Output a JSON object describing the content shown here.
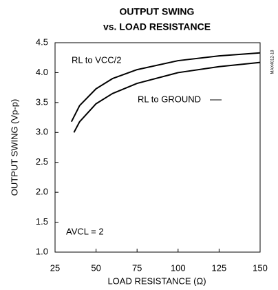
{
  "chart_data": {
    "type": "line",
    "title": [
      "OUTPUT SWING",
      "vs. LOAD RESISTANCE"
    ],
    "xlabel": "LOAD RESISTANCE (Ω)",
    "ylabel": "OUTPUT SWING (Vp-p)",
    "xlim": [
      25,
      150
    ],
    "xticks": [
      25,
      50,
      75,
      100,
      125,
      150
    ],
    "ylim": [
      1.0,
      4.5
    ],
    "yticks": [
      {
        "value": 1.0,
        "label": "1.0"
      },
      {
        "value": 1.5,
        "label": "1.5"
      },
      {
        "value": 2.0,
        "label": "2.0"
      },
      {
        "value": 2.5,
        "label": "2.5"
      },
      {
        "value": 3.0,
        "label": "3.0"
      },
      {
        "value": 3.5,
        "label": "3.5"
      },
      {
        "value": 4.0,
        "label": "4.0"
      },
      {
        "value": 4.5,
        "label": "4.5"
      }
    ],
    "grid": false,
    "series": [
      {
        "name": "RL to VCC/2",
        "color": "#000000",
        "x": [
          35,
          40,
          50,
          60,
          75,
          100,
          125,
          150
        ],
        "values": [
          3.18,
          3.45,
          3.73,
          3.9,
          4.05,
          4.2,
          4.28,
          4.33
        ]
      },
      {
        "name": "RL to GROUND",
        "color": "#000000",
        "x": [
          36.5,
          40,
          50,
          60,
          75,
          100,
          125,
          150
        ],
        "values": [
          3.0,
          3.18,
          3.48,
          3.65,
          3.82,
          4.0,
          4.1,
          4.17
        ]
      }
    ],
    "annotations": [
      "AVCL = 2",
      "MAX4012-18"
    ]
  }
}
